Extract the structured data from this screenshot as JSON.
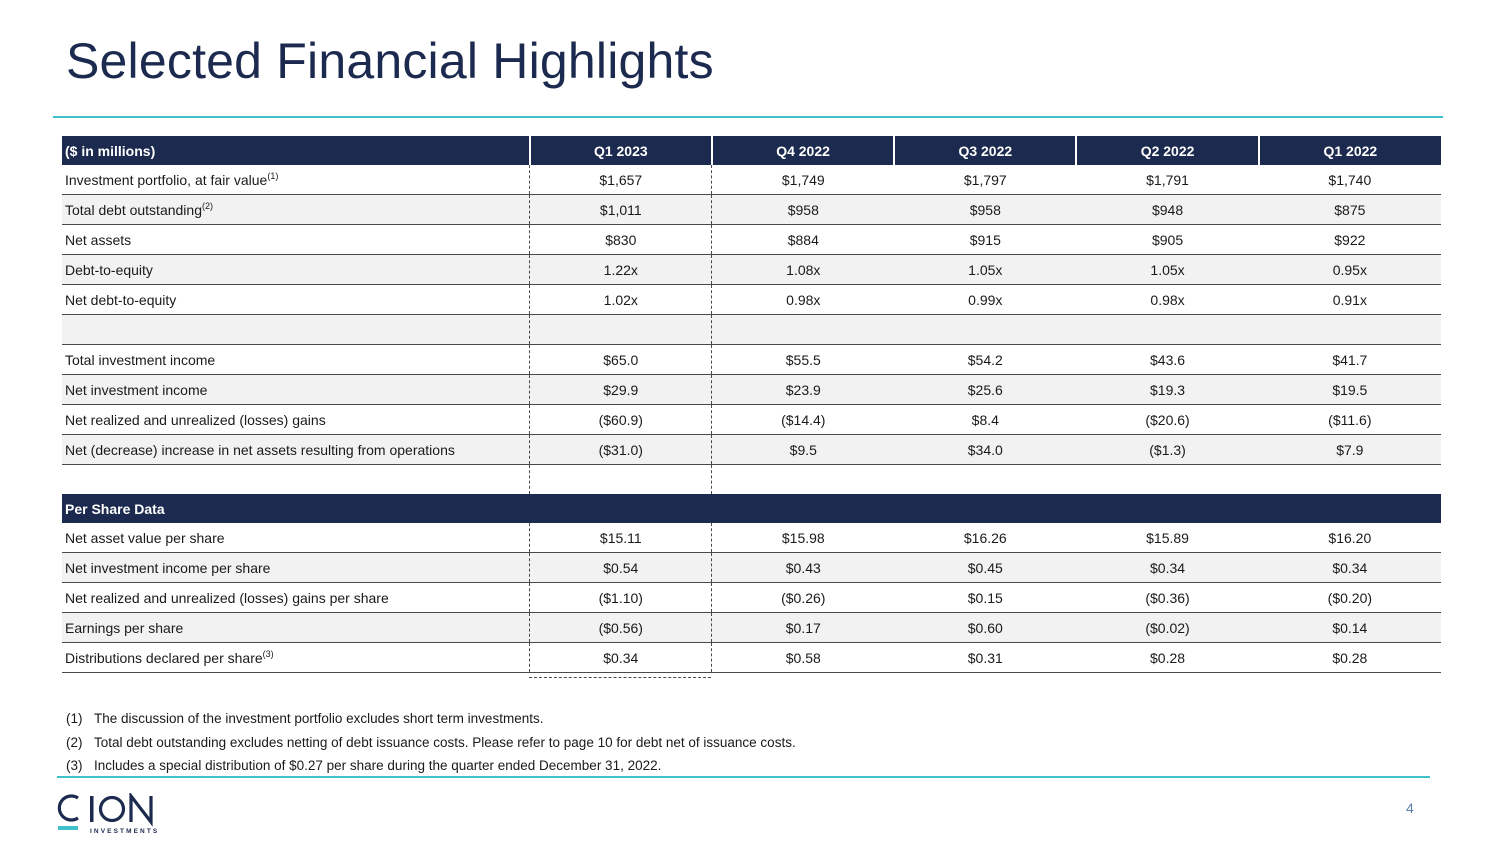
{
  "title": "Selected Financial Highlights",
  "table": {
    "header_label": "($ in millions)",
    "columns": [
      "Q1 2023",
      "Q4 2022",
      "Q3 2022",
      "Q2 2022",
      "Q1 2022"
    ],
    "rows": [
      {
        "label": "Investment portfolio, at fair value",
        "sup": "(1)",
        "values": [
          "$1,657",
          "$1,749",
          "$1,797",
          "$1,791",
          "$1,740"
        ]
      },
      {
        "label": "Total debt outstanding",
        "sup": "(2)",
        "values": [
          "$1,011",
          "$958",
          "$958",
          "$948",
          "$875"
        ]
      },
      {
        "label": "Net assets",
        "values": [
          "$830",
          "$884",
          "$915",
          "$905",
          "$922"
        ]
      },
      {
        "label": "Debt-to-equity",
        "values": [
          "1.22x",
          "1.08x",
          "1.05x",
          "1.05x",
          "0.95x"
        ]
      },
      {
        "label": "Net debt-to-equity",
        "values": [
          "1.02x",
          "0.98x",
          "0.99x",
          "0.98x",
          "0.91x"
        ]
      }
    ],
    "income_rows": [
      {
        "label": "Total investment income",
        "values": [
          "$65.0",
          "$55.5",
          "$54.2",
          "$43.6",
          "$41.7"
        ]
      },
      {
        "label": "Net investment income",
        "values": [
          "$29.9",
          "$23.9",
          "$25.6",
          "$19.3",
          "$19.5"
        ]
      },
      {
        "label": "Net realized and unrealized (losses) gains",
        "values": [
          "($60.9)",
          "($14.4)",
          "$8.4",
          "($20.6)",
          "($11.6)"
        ]
      },
      {
        "label": "Net (decrease) increase in net assets resulting from operations",
        "values": [
          "($31.0)",
          "$9.5",
          "$34.0",
          "($1.3)",
          "$7.9"
        ]
      }
    ],
    "per_share_header": "Per Share Data",
    "per_share_rows": [
      {
        "label": "Net asset value per share",
        "values": [
          "$15.11",
          "$15.98",
          "$16.26",
          "$15.89",
          "$16.20"
        ]
      },
      {
        "label": "Net investment income per share",
        "values": [
          "$0.54",
          "$0.43",
          "$0.45",
          "$0.34",
          "$0.34"
        ]
      },
      {
        "label": "Net realized and unrealized (losses) gains per share",
        "values": [
          "($1.10)",
          "($0.26)",
          "$0.15",
          "($0.36)",
          "($0.20)"
        ]
      },
      {
        "label": "Earnings per share",
        "values": [
          "($0.56)",
          "$0.17",
          "$0.60",
          "($0.02)",
          "$0.14"
        ]
      },
      {
        "label": "Distributions declared per share",
        "sup": "(3)",
        "values": [
          "$0.34",
          "$0.58",
          "$0.31",
          "$0.28",
          "$0.28"
        ]
      }
    ]
  },
  "footnotes": [
    {
      "num": "(1)",
      "text": "The discussion of the investment portfolio excludes short term investments."
    },
    {
      "num": "(2)",
      "text": "Total debt outstanding excludes netting of debt issuance costs. Please refer to page 10 for debt net of issuance costs."
    },
    {
      "num": "(3)",
      "text": "Includes a special distribution of $0.27 per share during the quarter ended December 31, 2022."
    }
  ],
  "logo": {
    "name": "CION",
    "tagline": "INVESTMENTS"
  },
  "page_number": "4",
  "colors": {
    "navy": "#1b2a4e",
    "teal": "#3fc1c9",
    "row_shade": "#f2f2f2"
  }
}
